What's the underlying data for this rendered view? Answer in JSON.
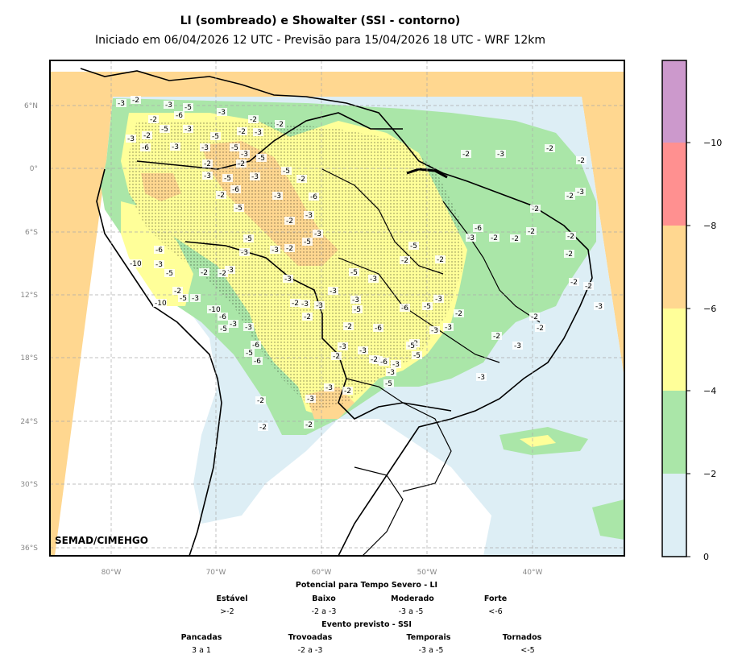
{
  "title": "LI (sombreado) e Showalter (SSI - contorno)",
  "subtitle": "Iniciado em 06/04/2026 12 UTC - Previsão para 15/04/2026 18 UTC - WRF 12km",
  "watermark": "SEMAD/CIMEHGO",
  "axes": {
    "lat_labels": [
      "6°N",
      "0°",
      "6°S",
      "12°S",
      "18°S",
      "24°S",
      "30°S",
      "36°S"
    ],
    "lon_labels": [
      "80°W",
      "70°W",
      "60°W",
      "50°W",
      "40°W"
    ]
  },
  "colorbar": {
    "labels": [
      "0",
      "−2",
      "−4",
      "−6",
      "−8",
      "−10"
    ],
    "colors": [
      "#ddeef5",
      "#aae6a8",
      "#ffff99",
      "#ffd790",
      "#ff9090",
      "#cc99cc"
    ]
  },
  "contour_labels": [
    {
      "v": "-3"
    },
    {
      "v": "-2"
    },
    {
      "v": "-3"
    },
    {
      "v": "-5"
    },
    {
      "v": "-2"
    },
    {
      "v": "-6"
    },
    {
      "v": "-3"
    },
    {
      "v": "-2"
    },
    {
      "v": "-3"
    },
    {
      "v": "-2"
    },
    {
      "v": "-6"
    },
    {
      "v": "-3"
    },
    {
      "v": "-5"
    },
    {
      "v": "-3"
    },
    {
      "v": "-3"
    },
    {
      "v": "-5"
    },
    {
      "v": "-2"
    },
    {
      "v": "-3"
    },
    {
      "v": "-2"
    },
    {
      "v": "-5"
    },
    {
      "v": "-2"
    },
    {
      "v": "-3"
    },
    {
      "v": "-2"
    },
    {
      "v": "-3"
    },
    {
      "v": "-5"
    },
    {
      "v": "-5"
    },
    {
      "v": "-5"
    },
    {
      "v": "-2"
    },
    {
      "v": "-6"
    },
    {
      "v": "-3"
    },
    {
      "v": "-3"
    },
    {
      "v": "-2"
    },
    {
      "v": "-6"
    },
    {
      "v": "-5"
    },
    {
      "v": "-3"
    },
    {
      "v": "-2"
    },
    {
      "v": "-3"
    },
    {
      "v": "-5"
    },
    {
      "v": "-2"
    },
    {
      "v": "-3"
    },
    {
      "v": "-5"
    },
    {
      "v": "-3"
    },
    {
      "v": "-3"
    },
    {
      "v": "-2"
    },
    {
      "v": "-10"
    },
    {
      "v": "-5"
    },
    {
      "v": "-3"
    },
    {
      "v": "-6"
    },
    {
      "v": "-10"
    },
    {
      "v": "-5"
    },
    {
      "v": "-2"
    },
    {
      "v": "-3"
    },
    {
      "v": "-10"
    },
    {
      "v": "-6"
    },
    {
      "v": "-5"
    },
    {
      "v": "-3"
    },
    {
      "v": "-6"
    },
    {
      "v": "-5"
    },
    {
      "v": "-6"
    },
    {
      "v": "-3"
    },
    {
      "v": "-2"
    },
    {
      "v": "-3"
    },
    {
      "v": "-3"
    },
    {
      "v": "-5"
    },
    {
      "v": "-3"
    },
    {
      "v": "-2"
    },
    {
      "v": "-3"
    },
    {
      "v": "-3"
    },
    {
      "v": "-2"
    },
    {
      "v": "-6"
    },
    {
      "v": "-3"
    },
    {
      "v": "-5"
    },
    {
      "v": "-3"
    },
    {
      "v": "-5"
    },
    {
      "v": "-2"
    },
    {
      "v": "-5"
    },
    {
      "v": "-3"
    },
    {
      "v": "-2"
    },
    {
      "v": "-3"
    },
    {
      "v": "-3"
    },
    {
      "v": "-2"
    },
    {
      "v": "-3"
    },
    {
      "v": "-2"
    },
    {
      "v": "-3"
    },
    {
      "v": "-2"
    },
    {
      "v": "-3"
    },
    {
      "v": "-2"
    },
    {
      "v": "-3"
    },
    {
      "v": "-2"
    },
    {
      "v": "-2"
    },
    {
      "v": "-2"
    },
    {
      "v": "-2"
    },
    {
      "v": "-6"
    },
    {
      "v": "-5"
    },
    {
      "v": "-6"
    },
    {
      "v": "-5"
    },
    {
      "v": "-3"
    },
    {
      "v": "-2"
    },
    {
      "v": "-5"
    },
    {
      "v": "-2"
    },
    {
      "v": "-3"
    },
    {
      "v": "-6"
    },
    {
      "v": "-2"
    },
    {
      "v": "-2"
    },
    {
      "v": "-2"
    },
    {
      "v": "-2"
    },
    {
      "v": "-2"
    },
    {
      "v": "-3"
    },
    {
      "v": "-2"
    },
    {
      "v": "-3"
    },
    {
      "v": "-2"
    },
    {
      "v": "-2"
    },
    {
      "v": "-2"
    },
    {
      "v": "-2"
    },
    {
      "v": "-2"
    },
    {
      "v": "-2"
    },
    {
      "v": "-3"
    },
    {
      "v": "-2"
    },
    {
      "v": "-2"
    },
    {
      "v": "-3"
    },
    {
      "v": "-3"
    },
    {
      "v": "-2"
    }
  ],
  "legend": {
    "li_title": "Potencial para Tempo Severo - LI",
    "li": [
      {
        "name": "Estável",
        "range": ">-2"
      },
      {
        "name": "Baixo",
        "range": "-2 a -3"
      },
      {
        "name": "Moderado",
        "range": "-3 a -5"
      },
      {
        "name": "Forte",
        "range": "<-6"
      }
    ],
    "ssi_title": "Evento previsto - SSI",
    "ssi": [
      {
        "name": "Pancadas",
        "range": "3 a 1"
      },
      {
        "name": "Trovoadas",
        "range": "-2 a -3"
      },
      {
        "name": "Temporais",
        "range": "-3 a -5"
      },
      {
        "name": "Tornados",
        "range": "<-5"
      }
    ]
  }
}
